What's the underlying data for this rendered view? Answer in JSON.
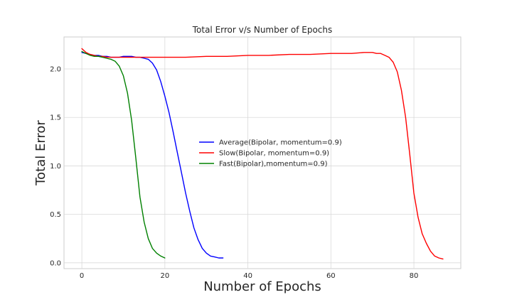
{
  "chart_data": {
    "type": "line",
    "title": "Total Error v/s Number of Epochs",
    "xlabel": "Number of Epochs",
    "ylabel": "Total Error",
    "xlim": [
      -4.3,
      91.3
    ],
    "ylim": [
      -0.06,
      2.33
    ],
    "xticks": [
      0,
      20,
      40,
      60,
      80
    ],
    "yticks": [
      0.0,
      0.5,
      1.0,
      1.5,
      2.0
    ],
    "xtick_labels": [
      "0",
      "20",
      "40",
      "60",
      "80"
    ],
    "ytick_labels": [
      "0.0",
      "0.5",
      "1.0",
      "1.5",
      "2.0"
    ],
    "grid": true,
    "legend_position": "center",
    "series": [
      {
        "name": "Average(Bipolar, momentum=0.9)",
        "color": "#0000ff",
        "x": [
          0,
          1,
          2,
          3,
          4,
          5,
          6,
          7,
          8,
          9,
          10,
          11,
          12,
          13,
          14,
          15,
          16,
          17,
          18,
          19,
          20,
          21,
          22,
          23,
          24,
          25,
          26,
          27,
          28,
          29,
          30,
          31,
          32,
          33,
          34
        ],
        "y": [
          2.17,
          2.16,
          2.15,
          2.14,
          2.14,
          2.13,
          2.13,
          2.12,
          2.12,
          2.12,
          2.13,
          2.13,
          2.13,
          2.12,
          2.12,
          2.11,
          2.1,
          2.06,
          1.99,
          1.87,
          1.72,
          1.55,
          1.35,
          1.14,
          0.93,
          0.72,
          0.53,
          0.36,
          0.24,
          0.15,
          0.1,
          0.07,
          0.06,
          0.05,
          0.05
        ]
      },
      {
        "name": "Slow(Bipolar, momentum=0.9)",
        "color": "#ff0000",
        "x": [
          0,
          1,
          2,
          3,
          4,
          5,
          6,
          7,
          8,
          10,
          15,
          20,
          25,
          30,
          35,
          40,
          45,
          50,
          55,
          60,
          65,
          68,
          70,
          71,
          72,
          73,
          74,
          75,
          76,
          77,
          78,
          79,
          80,
          81,
          82,
          83,
          84,
          85,
          86,
          87
        ],
        "y": [
          2.21,
          2.17,
          2.15,
          2.14,
          2.13,
          2.13,
          2.12,
          2.12,
          2.12,
          2.12,
          2.12,
          2.12,
          2.12,
          2.13,
          2.13,
          2.14,
          2.14,
          2.15,
          2.15,
          2.16,
          2.16,
          2.17,
          2.17,
          2.16,
          2.16,
          2.14,
          2.12,
          2.07,
          1.97,
          1.78,
          1.5,
          1.12,
          0.72,
          0.47,
          0.3,
          0.2,
          0.12,
          0.07,
          0.05,
          0.04
        ]
      },
      {
        "name": "Fast(Bipolar),momentum=0.9)",
        "color": "#008000",
        "x": [
          0,
          1,
          2,
          3,
          4,
          5,
          6,
          7,
          8,
          9,
          10,
          11,
          12,
          13,
          14,
          15,
          16,
          17,
          18,
          19,
          20
        ],
        "y": [
          2.18,
          2.16,
          2.14,
          2.13,
          2.13,
          2.12,
          2.11,
          2.1,
          2.08,
          2.03,
          1.93,
          1.75,
          1.47,
          1.08,
          0.68,
          0.42,
          0.25,
          0.15,
          0.1,
          0.07,
          0.05
        ]
      }
    ]
  }
}
